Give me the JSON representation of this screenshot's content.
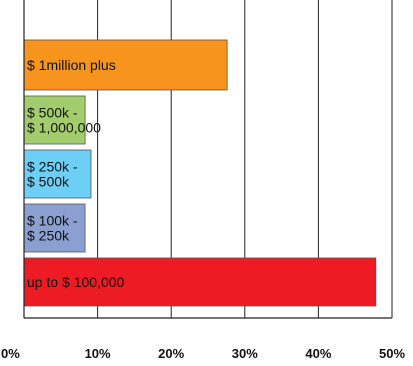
{
  "chart_data": {
    "type": "bar",
    "orientation": "horizontal",
    "categories": [
      "$ 1million plus",
      "$ 500k - $ 1,000,000",
      "$ 250k - $ 500k",
      "$ 100k - $ 250k",
      "up to $ 100,000"
    ],
    "bar_labels": [
      [
        "$ 1million plus"
      ],
      [
        "$ 500k -",
        "$ 1,000,000"
      ],
      [
        "$ 250k -",
        "$ 500k"
      ],
      [
        "$ 100k -",
        "$ 250k"
      ],
      [
        "up to $ 100,000"
      ]
    ],
    "values": [
      27.6,
      8.3,
      9.1,
      8.3,
      47.8
    ],
    "colors": [
      "#f7941d",
      "#a3cd6c",
      "#6dcff6",
      "#8b9fd0",
      "#ed1c24"
    ],
    "xlim": [
      0,
      50
    ],
    "xticks": [
      0,
      10,
      20,
      30,
      40,
      50
    ],
    "xtick_labels": [
      "0%",
      "10%",
      "20%",
      "30%",
      "40%",
      "50%"
    ],
    "grid": true,
    "title": "",
    "xlabel": "",
    "ylabel": ""
  }
}
